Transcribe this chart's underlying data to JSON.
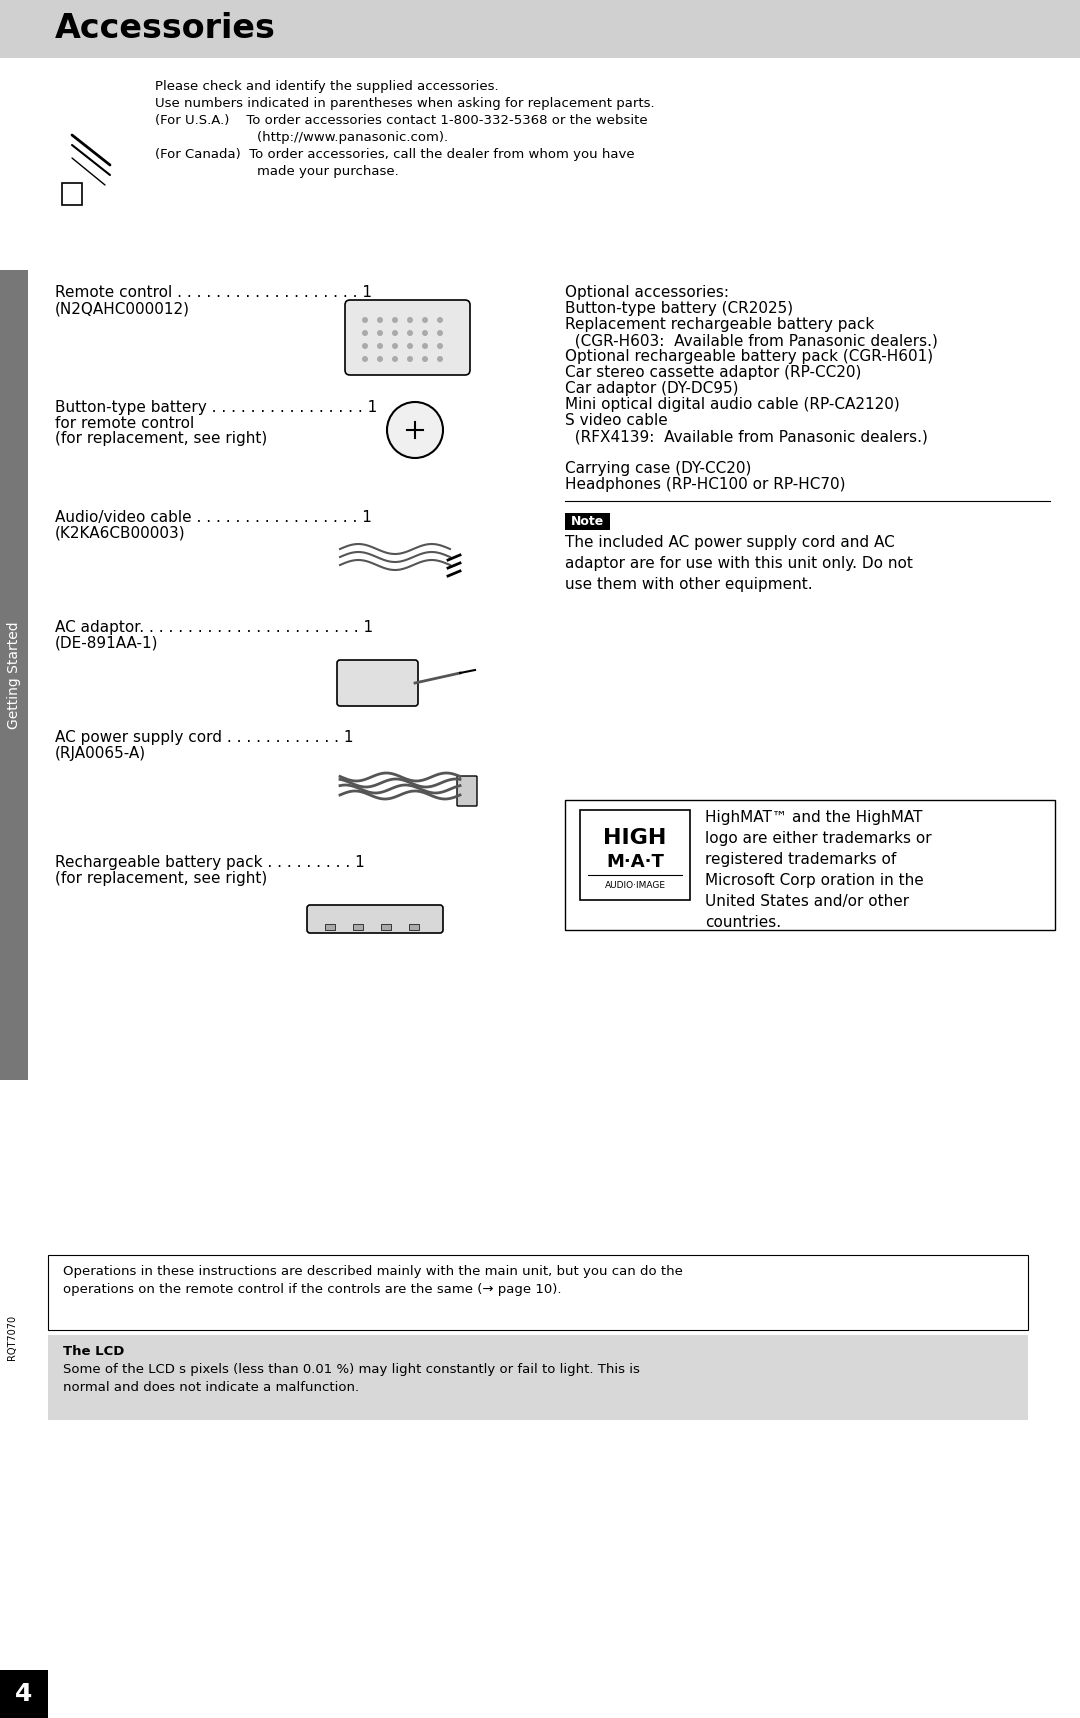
{
  "title": "Accessories",
  "title_bg": "#d0d0d0",
  "page_bg": "#ffffff",
  "sidebar_color": "#777777",
  "sidebar_text": "Getting Started",
  "page_number": "4",
  "page_number_bg": "#000000",
  "doc_id": "RQT7070",
  "note_intro_lines": [
    "Please check and identify the supplied accessories.",
    "Use numbers indicated in parentheses when asking for replacement parts.",
    "(For U.S.A.)    To order accessories contact 1-800-332-5368 or the website",
    "                        (http://www.panasonic.com).",
    "(For Canada)  To order accessories, call the dealer from whom you have",
    "                        made your purchase."
  ],
  "left_items": [
    {
      "name": "Remote control . . . . . . . . . . . . . . . . . . . 1",
      "sub": "(N2QAHC000012)"
    },
    {
      "name": "Button-type battery . . . . . . . . . . . . . . . . 1",
      "sub": "for remote control\n(for replacement, see right)"
    },
    {
      "name": "Audio/video cable . . . . . . . . . . . . . . . . . 1",
      "sub": "(K2KA6CB00003)"
    },
    {
      "name": "AC adaptor. . . . . . . . . . . . . . . . . . . . . . . 1",
      "sub": "(DE-891AA-1)"
    },
    {
      "name": "AC power supply cord . . . . . . . . . . . . 1",
      "sub": "(RJA0065-A)"
    },
    {
      "name": "Rechargeable battery pack . . . . . . . . . 1",
      "sub": "(for replacement, see right)"
    }
  ],
  "right_items": [
    "Optional accessories:",
    "Button-type battery (CR2025)",
    "Replacement rechargeable battery pack",
    "  (CGR-H603:  Available from Panasonic dealers.)",
    "Optional rechargeable battery pack (CGR-H601)",
    "Car stereo cassette adaptor (RP-CC20)",
    "Car adaptor (DY-DC95)",
    "Mini optical digital audio cable (RP-CA2120)",
    "S video cable",
    "  (RFX4139:  Available from Panasonic dealers.)",
    "",
    "Carrying case (DY-CC20)",
    "Headphones (RP-HC100 or RP-HC70)"
  ],
  "note_text": "The included AC power supply cord and AC\nadaptor are for use with this unit only. Do not\nuse them with other equipment.",
  "highmat_text": "HighMAT™ and the HighMAT\nlogo are either trademarks or\nregistered trademarks of\nMicrosoft Corp oration in the\nUnited States and/or other\ncountries.",
  "bottom_note1": "Operations in these instructions are described mainly with the main unit, but you can do the\noperations on the remote control if the controls are the same (→ page 10).",
  "bottom_note2_title": "The LCD",
  "bottom_note2_body": "Some of the LCD s pixels (less than 0.01 %) may light constantly or fail to light. This is\nnormal and does not indicate a malfunction.",
  "bottom_box2_bg": "#d8d8d8"
}
